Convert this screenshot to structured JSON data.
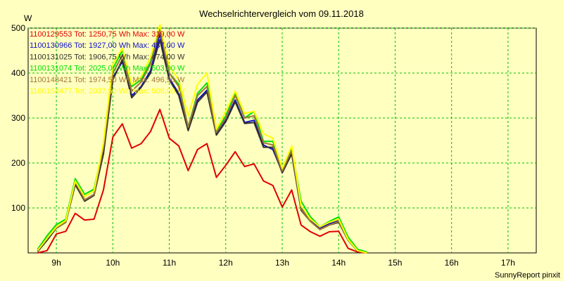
{
  "chart_data": {
    "type": "line",
    "title": "Wechselrichtervergleich vom 09.11.2018",
    "ylabel": "W",
    "xlabel": "",
    "ylim": [
      0,
      500
    ],
    "y_ticks": [
      100,
      200,
      300,
      400,
      500
    ],
    "x_tick_labels": [
      "9h",
      "10h",
      "11h",
      "12h",
      "13h",
      "14h",
      "15h",
      "16h",
      "17h"
    ],
    "x_ticks_hours": [
      9,
      10,
      11,
      12,
      13,
      14,
      15,
      16,
      17
    ],
    "x_start_hours": 8.667,
    "x_step_hours": 0.1667,
    "grid": true,
    "legend_position": "top-left",
    "footer": "SunnyReport pinxit",
    "series": [
      {
        "name": "1100129553",
        "legend": "1100129553 Tot: 1250,75 Wh Max: 319,00 W",
        "color": "#e00000",
        "values": [
          0,
          5,
          42,
          48,
          88,
          73,
          75,
          140,
          258,
          287,
          233,
          243,
          270,
          319,
          255,
          238,
          183,
          230,
          243,
          168,
          195,
          225,
          192,
          198,
          160,
          150,
          102,
          140,
          62,
          47,
          37,
          47,
          48,
          10,
          2,
          0
        ]
      },
      {
        "name": "1100130966",
        "legend": "1100130966 Tot: 1927,00 Wh Max: 487,00 W",
        "color": "#1010c8",
        "values": [
          5,
          30,
          58,
          70,
          155,
          118,
          130,
          225,
          390,
          425,
          350,
          370,
          405,
          487,
          388,
          355,
          275,
          340,
          362,
          265,
          295,
          340,
          290,
          295,
          240,
          230,
          180,
          225,
          100,
          72,
          55,
          65,
          72,
          30,
          5,
          0
        ]
      },
      {
        "name": "1100131025",
        "legend": "1100131025 Tot: 1906,75 Wh Max: 474,00 W",
        "color": "#303030",
        "values": [
          3,
          28,
          55,
          68,
          152,
          115,
          128,
          220,
          385,
          430,
          345,
          368,
          400,
          474,
          385,
          350,
          272,
          335,
          358,
          262,
          292,
          336,
          288,
          290,
          235,
          235,
          178,
          220,
          95,
          70,
          52,
          62,
          68,
          28,
          4,
          0
        ]
      },
      {
        "name": "1100131074",
        "legend": "1100131074 Tot: 2025,00 Wh Max: 503,00 W",
        "color": "#00e000",
        "values": [
          8,
          38,
          63,
          75,
          165,
          130,
          142,
          240,
          410,
          450,
          370,
          385,
          425,
          500,
          400,
          375,
          280,
          355,
          378,
          270,
          305,
          355,
          300,
          315,
          248,
          248,
          188,
          232,
          115,
          80,
          58,
          70,
          80,
          35,
          8,
          2
        ]
      },
      {
        "name": "1100148421",
        "legend": "1100148421 Tot: 1974,50 Wh Max: 496,50 W",
        "color": "#a07838",
        "values": [
          6,
          32,
          56,
          68,
          158,
          118,
          130,
          235,
          400,
          440,
          360,
          380,
          420,
          496,
          400,
          370,
          280,
          350,
          370,
          268,
          300,
          350,
          300,
          305,
          245,
          240,
          182,
          228,
          98,
          70,
          52,
          62,
          70,
          28,
          5,
          0
        ]
      },
      {
        "name": "1100154477",
        "legend": "1100154477 Tot: 2037,50 Wh Max: 508,00 W",
        "color": "#ffff00",
        "values": [
          5,
          32,
          58,
          72,
          160,
          125,
          138,
          245,
          420,
          455,
          375,
          392,
          435,
          508,
          415,
          385,
          305,
          375,
          400,
          275,
          315,
          360,
          310,
          315,
          265,
          255,
          188,
          238,
          105,
          75,
          58,
          68,
          75,
          30,
          5,
          0
        ]
      }
    ]
  }
}
